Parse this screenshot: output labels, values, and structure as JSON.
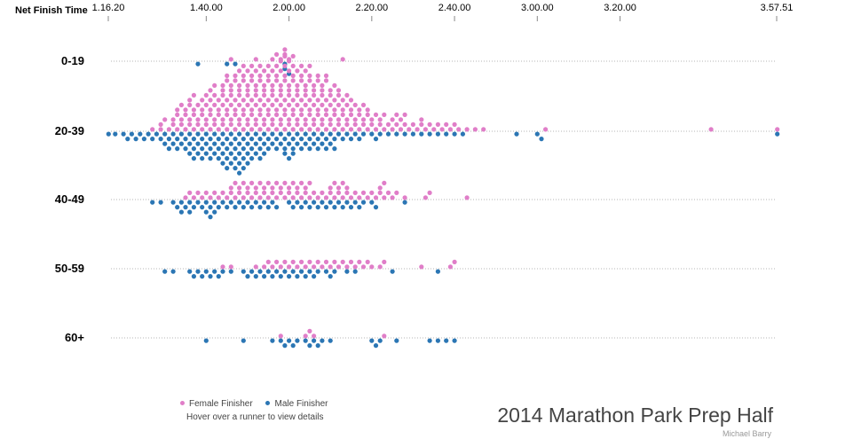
{
  "chart_data": {
    "type": "scatter",
    "subtype": "beeswarm",
    "x_axis": {
      "label": "Net Finish Time",
      "ticks": [
        "1.16.20",
        "1.40.00",
        "2.00.00",
        "2.20.00",
        "2.40.00",
        "3.00.00",
        "3.20.00",
        "3.57.51"
      ],
      "tick_values_minutes": [
        76.33,
        100,
        120,
        140,
        160,
        180,
        200,
        237.85
      ],
      "range_minutes": [
        76.33,
        237.85
      ]
    },
    "rows": [
      "0-19",
      "20-39",
      "40-49",
      "50-59",
      "60+"
    ],
    "colors": {
      "female": "#e07ec8",
      "male": "#2b76b4"
    },
    "grid": true,
    "legend": {
      "position": "bottom-left",
      "entries": [
        {
          "key": "female",
          "label": "Female Finisher",
          "color": "#e07ec8"
        },
        {
          "key": "male",
          "label": "Male Finisher",
          "color": "#2b76b4"
        }
      ]
    },
    "finishers": {
      "0-19": {
        "female": [
          106,
          112,
          116,
          117,
          118,
          119,
          119,
          120,
          133
        ],
        "male": [
          98,
          105,
          107,
          119,
          119,
          120
        ]
      },
      "20-39": {
        "female": [
          87,
          89,
          89,
          90,
          91,
          92,
          92,
          93,
          93,
          93,
          94,
          94,
          94,
          95,
          95,
          95,
          96,
          96,
          96,
          96,
          97,
          97,
          97,
          97,
          98,
          98,
          98,
          99,
          99,
          99,
          99,
          100,
          100,
          100,
          100,
          101,
          101,
          101,
          101,
          101,
          102,
          102,
          102,
          102,
          102,
          103,
          103,
          103,
          103,
          104,
          104,
          104,
          104,
          104,
          104,
          105,
          105,
          105,
          105,
          105,
          105,
          106,
          106,
          106,
          106,
          106,
          106,
          107,
          107,
          107,
          107,
          107,
          107,
          108,
          108,
          108,
          108,
          108,
          108,
          108,
          109,
          109,
          109,
          109,
          109,
          109,
          109,
          110,
          110,
          110,
          110,
          110,
          110,
          110,
          111,
          111,
          111,
          111,
          111,
          111,
          111,
          112,
          112,
          112,
          112,
          112,
          112,
          112,
          113,
          113,
          113,
          113,
          113,
          113,
          113,
          114,
          114,
          114,
          114,
          114,
          114,
          114,
          115,
          115,
          115,
          115,
          115,
          115,
          115,
          116,
          116,
          116,
          116,
          116,
          116,
          116,
          117,
          117,
          117,
          117,
          117,
          117,
          117,
          118,
          118,
          118,
          118,
          118,
          118,
          118,
          118,
          119,
          119,
          119,
          119,
          119,
          119,
          119,
          119,
          120,
          120,
          120,
          120,
          120,
          120,
          120,
          120,
          121,
          121,
          121,
          121,
          121,
          121,
          121,
          121,
          122,
          122,
          122,
          122,
          122,
          122,
          122,
          123,
          123,
          123,
          123,
          123,
          123,
          123,
          124,
          124,
          124,
          124,
          124,
          124,
          124,
          125,
          125,
          125,
          125,
          125,
          125,
          125,
          126,
          126,
          126,
          126,
          126,
          126,
          127,
          127,
          127,
          127,
          127,
          127,
          128,
          128,
          128,
          128,
          128,
          128,
          129,
          129,
          129,
          129,
          129,
          129,
          130,
          130,
          130,
          130,
          130,
          131,
          131,
          131,
          131,
          131,
          132,
          132,
          132,
          132,
          132,
          133,
          133,
          133,
          133,
          134,
          134,
          134,
          134,
          135,
          135,
          135,
          135,
          136,
          136,
          136,
          137,
          137,
          137,
          138,
          138,
          138,
          139,
          139,
          139,
          140,
          140,
          141,
          141,
          142,
          142,
          143,
          143,
          144,
          145,
          145,
          146,
          146,
          147,
          147,
          148,
          148,
          149,
          150,
          151,
          152,
          152,
          153,
          154,
          155,
          156,
          157,
          158,
          159,
          160,
          161,
          163,
          165,
          167,
          182,
          222,
          238
        ],
        "male": [
          76.4,
          78,
          80,
          81,
          82,
          83,
          84,
          85,
          86,
          87,
          88,
          89,
          90,
          90,
          91,
          91,
          92,
          92,
          93,
          93,
          94,
          94,
          95,
          95,
          96,
          96,
          96,
          97,
          97,
          97,
          98,
          98,
          98,
          99,
          99,
          99,
          100,
          100,
          100,
          101,
          101,
          101,
          102,
          102,
          102,
          103,
          103,
          103,
          104,
          104,
          104,
          104,
          105,
          105,
          105,
          105,
          106,
          106,
          106,
          106,
          107,
          107,
          107,
          107,
          108,
          108,
          108,
          108,
          108,
          109,
          109,
          109,
          109,
          110,
          110,
          110,
          110,
          111,
          111,
          111,
          112,
          112,
          112,
          113,
          113,
          113,
          114,
          114,
          114,
          115,
          115,
          116,
          116,
          117,
          117,
          118,
          118,
          119,
          119,
          119,
          120,
          120,
          120,
          121,
          121,
          121,
          122,
          122,
          123,
          123,
          124,
          124,
          125,
          125,
          126,
          126,
          127,
          127,
          128,
          128,
          129,
          129,
          130,
          130,
          131,
          131,
          132,
          133,
          134,
          135,
          136,
          137,
          138,
          140,
          141,
          142,
          144,
          146,
          148,
          150,
          152,
          154,
          156,
          158,
          160,
          162,
          175,
          180,
          181,
          238
        ]
      },
      "40-49": {
        "female": [
          95,
          96,
          97,
          98,
          99,
          100,
          101,
          102,
          103,
          104,
          105,
          106,
          106,
          107,
          107,
          108,
          108,
          109,
          109,
          110,
          110,
          111,
          111,
          112,
          112,
          113,
          113,
          114,
          114,
          115,
          115,
          116,
          116,
          117,
          117,
          118,
          118,
          119,
          119,
          120,
          120,
          121,
          121,
          122,
          122,
          123,
          123,
          124,
          124,
          125,
          125,
          126,
          127,
          128,
          129,
          130,
          130,
          131,
          131,
          132,
          132,
          133,
          133,
          134,
          134,
          135,
          136,
          137,
          138,
          139,
          140,
          141,
          142,
          142,
          143,
          143,
          144,
          145,
          146,
          148,
          153,
          154,
          163
        ],
        "male": [
          87,
          89,
          92,
          93,
          94,
          94,
          95,
          96,
          96,
          97,
          98,
          99,
          100,
          100,
          101,
          101,
          102,
          102,
          103,
          104,
          105,
          106,
          107,
          108,
          109,
          110,
          111,
          112,
          113,
          114,
          115,
          116,
          117,
          120,
          121,
          122,
          123,
          124,
          125,
          126,
          127,
          128,
          129,
          130,
          131,
          132,
          133,
          134,
          135,
          136,
          137,
          138,
          140,
          141,
          148
        ]
      },
      "50-59": {
        "female": [
          104,
          106,
          112,
          114,
          115,
          116,
          117,
          118,
          119,
          120,
          121,
          122,
          123,
          124,
          125,
          126,
          127,
          128,
          129,
          130,
          131,
          132,
          133,
          134,
          135,
          136,
          137,
          138,
          139,
          140,
          142,
          143,
          152,
          159,
          160
        ],
        "male": [
          90,
          92,
          96,
          97,
          98,
          99,
          100,
          101,
          102,
          103,
          104,
          106,
          109,
          110,
          111,
          112,
          113,
          114,
          115,
          116,
          117,
          118,
          119,
          120,
          121,
          122,
          123,
          124,
          125,
          126,
          127,
          129,
          130,
          131,
          134,
          136,
          145,
          156
        ]
      },
      "60+": {
        "female": [
          118,
          124,
          125,
          126,
          143
        ],
        "male": [
          100,
          109,
          116,
          118,
          119,
          120,
          121,
          122,
          124,
          125,
          126,
          127,
          128,
          130,
          140,
          141,
          142,
          146,
          154,
          156,
          158,
          160
        ]
      }
    }
  },
  "legend": {
    "female_label": "Female Finisher",
    "male_label": "Male Finisher",
    "hint": "Hover over a runner to view details"
  },
  "title": "2014 Marathon Park Prep Half",
  "credit": "Michael Barry"
}
